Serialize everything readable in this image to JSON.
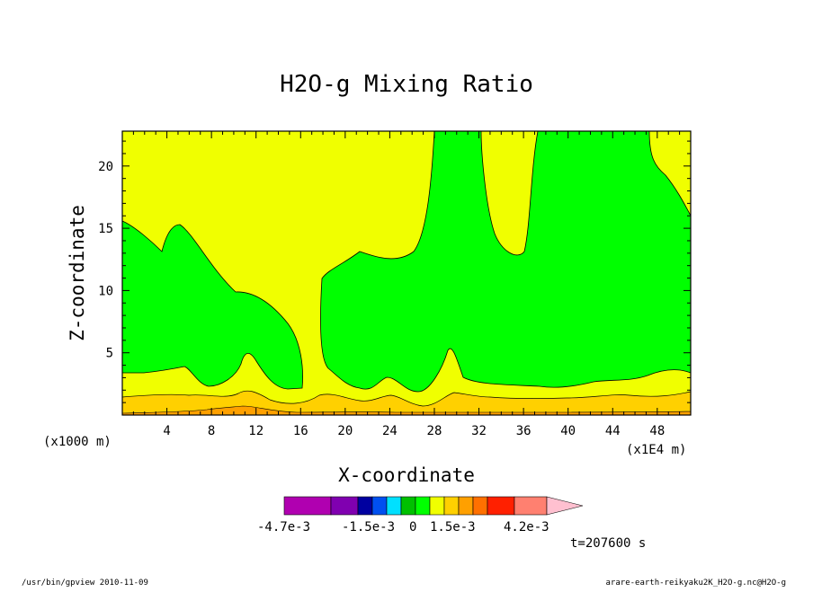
{
  "chart_data": {
    "type": "contour",
    "title": "H2O-g Mixing Ratio",
    "xlabel": "X-coordinate",
    "ylabel": "Z-coordinate",
    "x_unit_left": "(x1000 m)",
    "x_unit_right": "(x1E4 m)",
    "xlim": [
      0,
      51
    ],
    "ylim": [
      0,
      22.8
    ],
    "xticks": [
      "4",
      "8",
      "12",
      "16",
      "20",
      "24",
      "28",
      "32",
      "36",
      "40",
      "44",
      "48"
    ],
    "yticks": [
      "5",
      "10",
      "15",
      "20"
    ],
    "colorbar": {
      "colors": [
        "#b000b0",
        "#8000b0",
        "#0000a0",
        "#0050f0",
        "#00e0ff",
        "#00c000",
        "#00ff00",
        "#f0ff00",
        "#ffd000",
        "#ffa000",
        "#ff7000",
        "#ff2000",
        "#ff8070",
        "#ffc0d0"
      ],
      "labels": [
        "-4.7e-3",
        "-1.5e-3",
        "0",
        "1.5e-3",
        "4.2e-3"
      ]
    },
    "time_label": "t=207600 s",
    "regions": {
      "yellow": "#f0ff00",
      "green": "#00ff00",
      "orange_light": "#ffd000",
      "orange": "#ffa000"
    }
  },
  "footer": {
    "left": "/usr/bin/gpview  2010-11-09",
    "right": "arare-earth-reikyaku2K_H2O-g.nc@H2O-g"
  }
}
